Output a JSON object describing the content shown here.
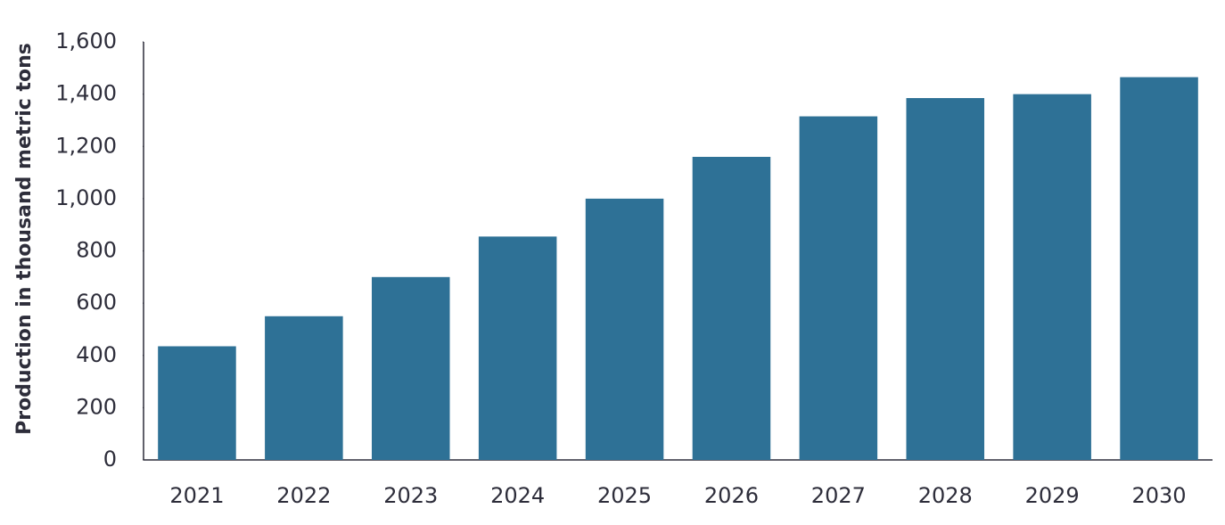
{
  "chart_data": {
    "type": "bar",
    "y_label": "Production in thousand metric tons",
    "categories": [
      "2021",
      "2022",
      "2023",
      "2024",
      "2025",
      "2026",
      "2027",
      "2028",
      "2029",
      "2030"
    ],
    "values": [
      435,
      550,
      700,
      855,
      1000,
      1160,
      1315,
      1385,
      1400,
      1465
    ],
    "color": "#2e7196",
    "ylim": [
      0,
      1600
    ],
    "yticks": [
      0,
      200,
      400,
      600,
      800,
      {
        "value": 1000,
        "label": "1,000"
      },
      {
        "value": 1200,
        "label": "1,200"
      },
      {
        "value": 1400,
        "label": "1,400"
      },
      {
        "value": 1600,
        "label": "1,600"
      }
    ],
    "grid": false
  }
}
